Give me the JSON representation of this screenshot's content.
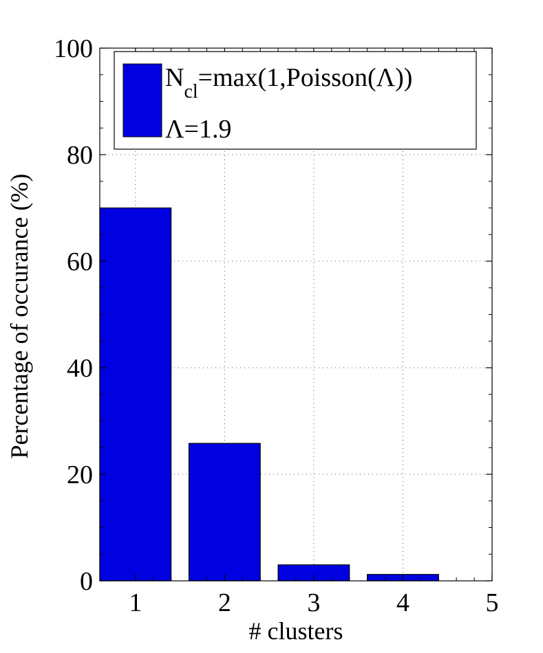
{
  "chart_data": {
    "type": "bar",
    "categories": [
      "1",
      "2",
      "3",
      "4",
      "5"
    ],
    "values": [
      70,
      25.8,
      3,
      1.2,
      0
    ],
    "xlabel": "# clusters",
    "ylabel": "Percentage of occurance (%)",
    "ylim": [
      0,
      100
    ],
    "xlim": [
      0.6,
      5
    ],
    "yticks": [
      "0",
      "20",
      "40",
      "60",
      "80",
      "100"
    ],
    "xticks": [
      "1",
      "2",
      "3",
      "4",
      "5"
    ],
    "grid": true,
    "grid_style": "dotted",
    "bar_color": "#0000e0",
    "legend": {
      "placement": "top",
      "line1_main": "N",
      "line1_sub": "cl",
      "line1_rest": "=max(1,Poisson(Λ))",
      "line2": "Λ=1.9"
    }
  }
}
